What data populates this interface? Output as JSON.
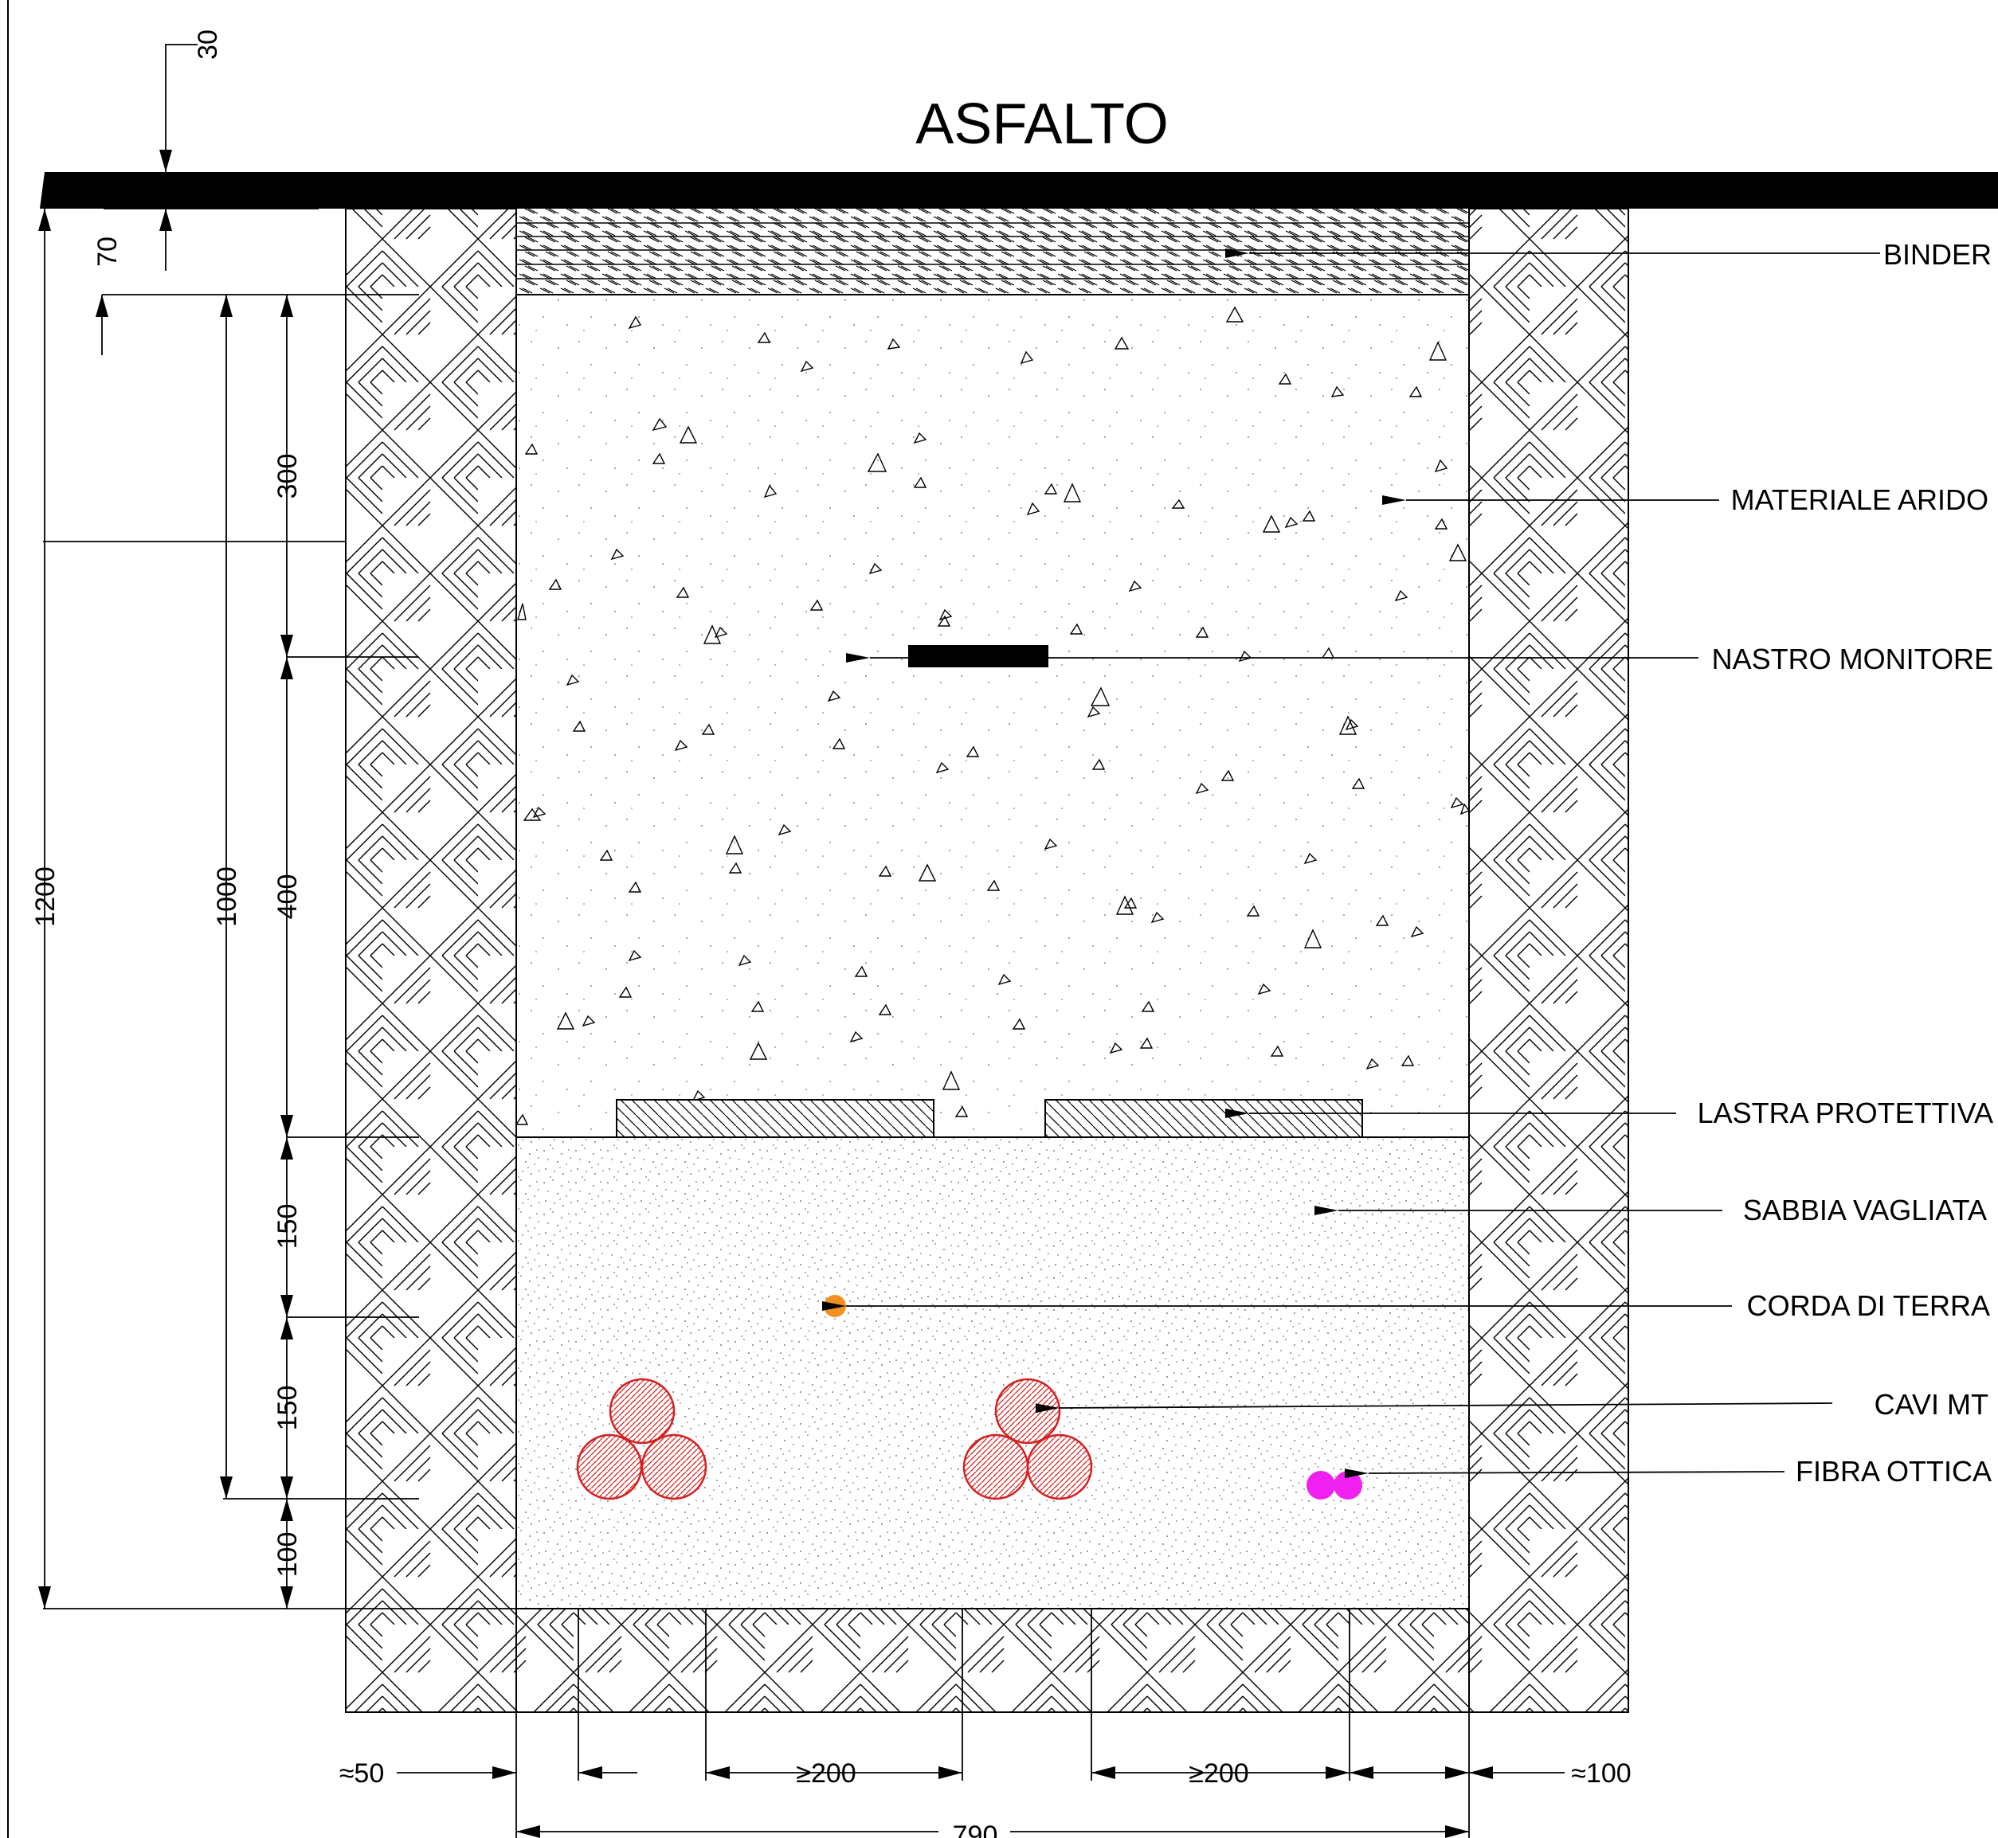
{
  "title": "ASFALTO",
  "layers": {
    "binder": "BINDER",
    "materiale_arido": "MATERIALE ARIDO",
    "nastro_monitore": "NASTRO MONITORE",
    "lastra_protettiva": "LASTRA PROTETTIVA",
    "sabbia_vagliata": "SABBIA VAGLIATA",
    "corda_di_terra": "CORDA DI TERRA",
    "cavi_mt": "CAVI MT",
    "fibra_ottica": "FIBRA OTTICA"
  },
  "dimensions": {
    "asphalt": "30",
    "binder": "70",
    "total_depth": "1200",
    "cable_depth": "1000",
    "layer_300": "300",
    "layer_400": "400",
    "layer_150_upper": "150",
    "layer_150_lower": "150",
    "layer_100": "100",
    "left_clearance": "≈50",
    "cable_spacing_1": "≥200",
    "cable_spacing_2": "≥200",
    "right_clearance": "≈100",
    "trench_width": "790"
  },
  "colors": {
    "cavi_mt": "#d42020",
    "corda_di_terra": "#f39020",
    "fibra_ottica": "#f020f0",
    "asphalt": "#000000"
  }
}
